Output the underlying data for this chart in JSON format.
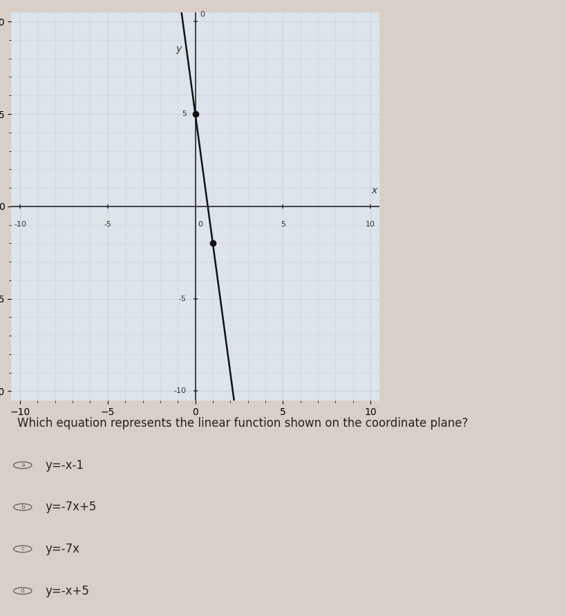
{
  "xlabel": "x",
  "ylabel": "y",
  "xlim": [
    -10.5,
    10.5
  ],
  "ylim": [
    -10.5,
    10.5
  ],
  "xticks": [
    -10,
    -5,
    0,
    5,
    10
  ],
  "yticks": [
    -10,
    -5,
    5
  ],
  "xtick_labels": [
    "-10",
    "-5",
    "0",
    "5",
    "10"
  ],
  "ytick_labels": [
    "-10",
    "-5",
    "5"
  ],
  "grid_color": "#c0c8d0",
  "grid_alpha": 0.7,
  "axis_color": "#333333",
  "line_color": "#111111",
  "line_width": 1.8,
  "slope": -7,
  "intercept": 5,
  "points": [
    [
      0,
      5
    ],
    [
      1,
      -2
    ]
  ],
  "point_color": "#111111",
  "point_size": 7,
  "graph_bg": "#dde4ec",
  "right_bg": "#c8c0b8",
  "bottom_bg": "#d8d0c8",
  "question_text": "Which equation represents the linear function shown on the coordinate plane?",
  "choices": [
    [
      "a",
      "y=-x-1"
    ],
    [
      "b",
      "y=-7x+5"
    ],
    [
      "c",
      "y=-7x"
    ],
    [
      "d",
      "y=-x+5"
    ]
  ],
  "choice_fontsize": 12,
  "question_fontsize": 12
}
